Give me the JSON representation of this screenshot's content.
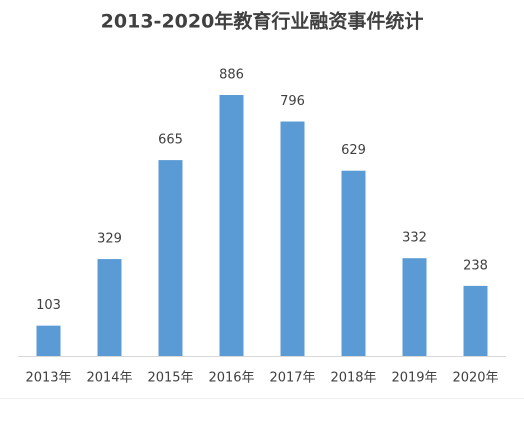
{
  "chart_data": {
    "type": "bar",
    "title": "2013-2020年教育行业融资事件统计",
    "categories": [
      "2013年",
      "2014年",
      "2015年",
      "2016年",
      "2017年",
      "2018年",
      "2019年",
      "2020年"
    ],
    "values": [
      103,
      329,
      665,
      886,
      796,
      629,
      332,
      238
    ],
    "color": "#5b9bd5"
  }
}
